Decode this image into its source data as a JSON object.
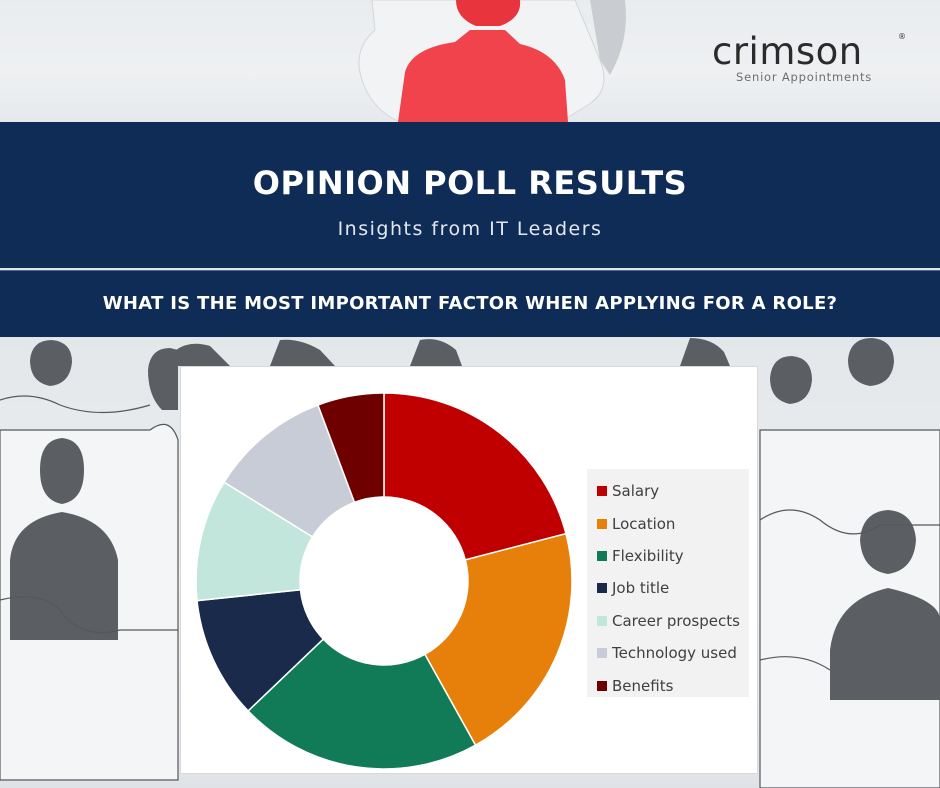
{
  "brand": {
    "name": "crimson",
    "registered_mark": "®",
    "tagline": "Senior Appointments"
  },
  "banner": {
    "title": "OPINION POLL RESULTS",
    "subtitle": "Insights from IT Leaders"
  },
  "question": "WHAT IS THE MOST IMPORTANT FACTOR WHEN APPLYING FOR A ROLE?",
  "colors": {
    "navy": "#0f2c57",
    "salary": "#c00000",
    "location": "#e6800a",
    "flexibility": "#107b56",
    "job_title": "#1a2a4a",
    "career_prospects": "#c3e6dc",
    "technology_used": "#c8ccd6",
    "benefits": "#6e0000"
  },
  "chart_data": {
    "type": "donut",
    "title": "",
    "categories": [
      "Salary",
      "Location",
      "Flexibility",
      "Job title",
      "Career prospects",
      "Technology used",
      "Benefits"
    ],
    "values": [
      22,
      22,
      22,
      11,
      11,
      11,
      6
    ],
    "colors": [
      "#c00000",
      "#e6800a",
      "#107b56",
      "#1a2a4a",
      "#c3e6dc",
      "#c8ccd6",
      "#6e0000"
    ],
    "legend_position": "right"
  }
}
